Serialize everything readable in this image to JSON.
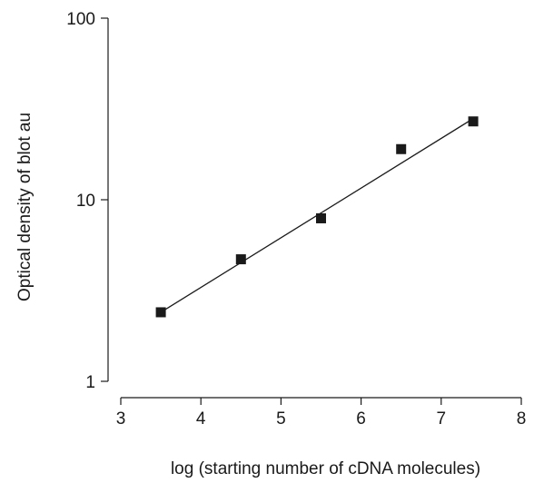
{
  "chart_data": {
    "type": "scatter",
    "title": "",
    "xlabel": "log (starting number of cDNA molecules)",
    "ylabel": "Optical density of blot  au",
    "xlim": [
      3,
      8
    ],
    "ylim": [
      1,
      100
    ],
    "y_scale": "log",
    "x_ticks": [
      "3",
      "4",
      "5",
      "6",
      "7",
      "8"
    ],
    "y_ticks": [
      "1",
      "10",
      "100"
    ],
    "grid": false,
    "legend": "none",
    "series": [
      {
        "x": [
          3.5,
          4.5,
          5.5,
          6.5,
          7.4
        ],
        "y": [
          2.4,
          4.7,
          7.9,
          19,
          27
        ]
      }
    ],
    "fit_line": {
      "x": [
        3.5,
        7.4
      ],
      "y": [
        2.4,
        28
      ]
    },
    "colors": {
      "marks": "#1a1a1a",
      "background": "#ffffff"
    }
  }
}
